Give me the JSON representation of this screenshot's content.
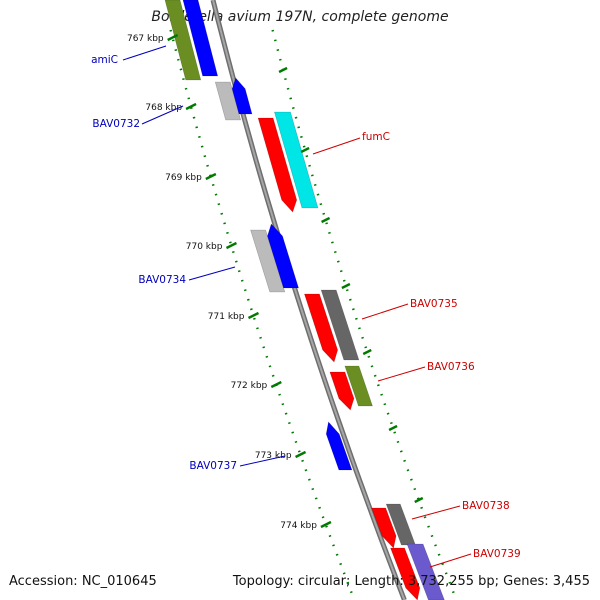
{
  "title": "Bordetella avium 197N, complete genome",
  "accession_text": "Accession: NC_010645",
  "summary_text": "Topology: circular; Length: 3,732,255 bp; Genes: 3,455",
  "colors": {
    "backbone": "#8c8c8c",
    "tick": "#007a00",
    "forward_label": "#cc0000",
    "reverse_label": "#0000bb",
    "gene_red": "#ff0000",
    "gene_blue": "#0000ff",
    "gene_cyan": "#00e5e5",
    "gene_green": "#6b8e23",
    "gene_gray": "#bbbbbb",
    "gene_darkgray": "#666666",
    "gene_slate": "#6a5acd"
  },
  "ticks": [
    "767 kbp",
    "768 kbp",
    "769 kbp",
    "770 kbp",
    "771 kbp",
    "772 kbp",
    "773 kbp",
    "774 kbp"
  ],
  "gene_labels": [
    {
      "name": "amiC",
      "strand": "reverse"
    },
    {
      "name": "BAV0732",
      "strand": "reverse"
    },
    {
      "name": "fumC",
      "strand": "forward"
    },
    {
      "name": "BAV0734",
      "strand": "reverse"
    },
    {
      "name": "BAV0735",
      "strand": "forward"
    },
    {
      "name": "BAV0736",
      "strand": "forward"
    },
    {
      "name": "BAV0737",
      "strand": "reverse"
    },
    {
      "name": "BAV0738",
      "strand": "forward"
    },
    {
      "name": "BAV0739",
      "strand": "forward"
    }
  ]
}
